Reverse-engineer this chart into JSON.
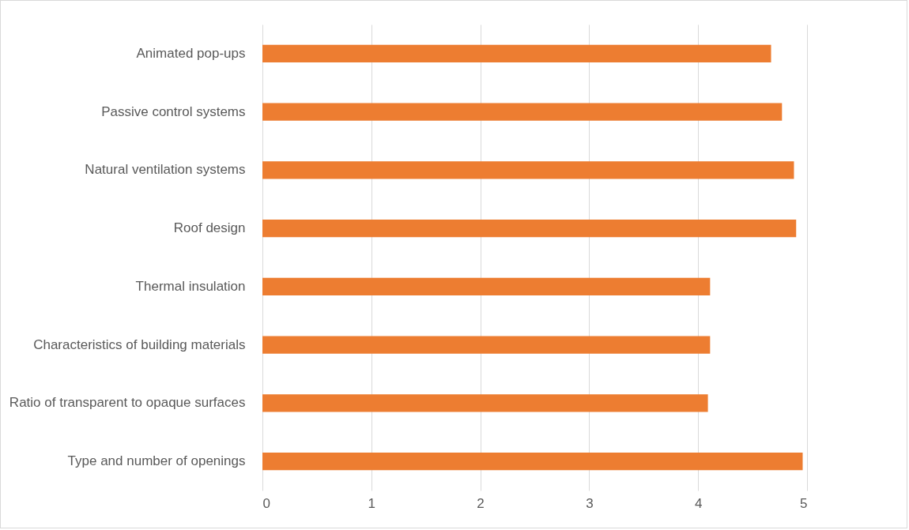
{
  "chart_data": {
    "type": "bar",
    "orientation": "horizontal",
    "categories": [
      "Animated pop-ups",
      "Passive control systems",
      "Natural ventilation systems",
      "Roof design",
      "Thermal insulation",
      "Characteristics of building materials",
      "Ratio of transparent to opaque surfaces",
      "Type and number of openings"
    ],
    "values": [
      4.67,
      4.77,
      4.88,
      4.9,
      4.11,
      4.11,
      4.09,
      4.96
    ],
    "color": "#ed7d31",
    "xlim": [
      0,
      5
    ],
    "xticks": [
      0,
      1,
      2,
      3,
      4,
      5
    ],
    "grid": "x"
  }
}
